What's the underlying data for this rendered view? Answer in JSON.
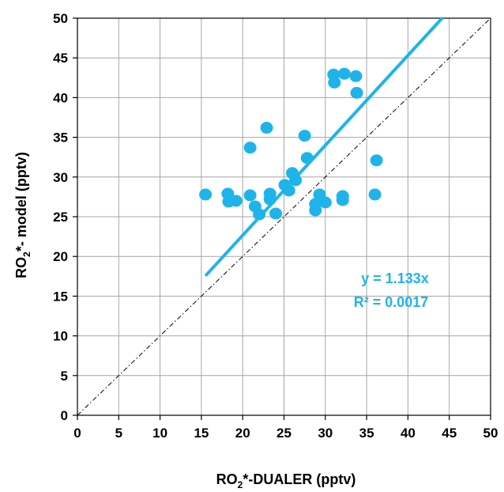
{
  "chart_data": {
    "type": "scatter",
    "title": "",
    "xlabel": {
      "main": "RO",
      "sub": "2",
      "rest": "*-DUALER (pptv)"
    },
    "ylabel": {
      "main": "RO",
      "sub": "2",
      "rest": "*- model (pptv)"
    },
    "xlim": [
      0,
      50
    ],
    "ylim": [
      0,
      50
    ],
    "xticks": [
      "0",
      "5",
      "10",
      "15",
      "20",
      "25",
      "30",
      "35",
      "40",
      "45",
      "50"
    ],
    "yticks": [
      "0",
      "5",
      "10",
      "15",
      "20",
      "25",
      "30",
      "35",
      "40",
      "45",
      "50"
    ],
    "grid": true,
    "point_color": "#1EB4EA",
    "points": [
      {
        "x": 15.5,
        "y": 27.8
      },
      {
        "x": 18.2,
        "y": 27.9
      },
      {
        "x": 18.3,
        "y": 26.9
      },
      {
        "x": 19.2,
        "y": 27.0
      },
      {
        "x": 20.9,
        "y": 33.7
      },
      {
        "x": 20.9,
        "y": 27.7
      },
      {
        "x": 21.5,
        "y": 26.3
      },
      {
        "x": 22.0,
        "y": 25.3
      },
      {
        "x": 22.9,
        "y": 36.2
      },
      {
        "x": 23.3,
        "y": 27.9
      },
      {
        "x": 23.3,
        "y": 27.2
      },
      {
        "x": 24.0,
        "y": 25.4
      },
      {
        "x": 25.1,
        "y": 29.0
      },
      {
        "x": 25.6,
        "y": 28.3
      },
      {
        "x": 26.0,
        "y": 30.5
      },
      {
        "x": 26.4,
        "y": 29.6
      },
      {
        "x": 27.5,
        "y": 35.2
      },
      {
        "x": 27.8,
        "y": 32.4
      },
      {
        "x": 28.8,
        "y": 26.6
      },
      {
        "x": 28.8,
        "y": 25.8
      },
      {
        "x": 29.3,
        "y": 27.8
      },
      {
        "x": 30.0,
        "y": 26.8
      },
      {
        "x": 31.0,
        "y": 42.9
      },
      {
        "x": 31.1,
        "y": 41.9
      },
      {
        "x": 32.1,
        "y": 27.6
      },
      {
        "x": 32.1,
        "y": 27.1
      },
      {
        "x": 32.3,
        "y": 43.0
      },
      {
        "x": 33.7,
        "y": 42.7
      },
      {
        "x": 33.8,
        "y": 40.6
      },
      {
        "x": 36.0,
        "y": 27.8
      },
      {
        "x": 36.2,
        "y": 32.1
      }
    ],
    "trendline": {
      "slope": 1.133,
      "x_start": 15.5,
      "x_end": 44.2,
      "color": "#1EB4EA"
    },
    "one_to_one_line": {
      "slope": 1,
      "x_start": 0,
      "x_end": 50,
      "color": "#000000",
      "style": "dash-dot"
    },
    "annotations": {
      "equation": "y = 1.133x",
      "r_squared": "R² = 0.0017"
    }
  }
}
